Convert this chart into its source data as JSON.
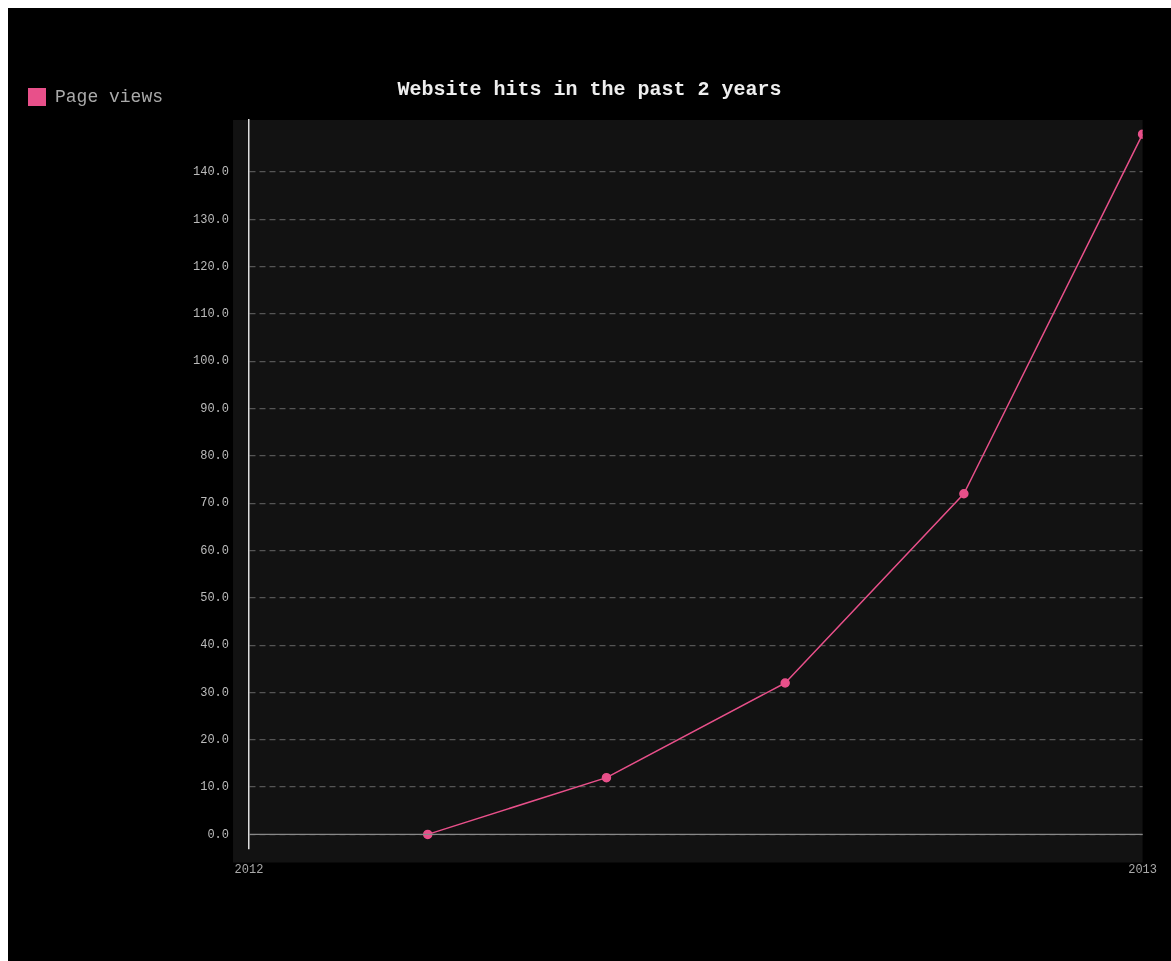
{
  "chart_data": {
    "type": "line",
    "title": "Website hits in the past 2 years",
    "x": [
      2012.2,
      2012.4,
      2012.6,
      2012.8,
      2013
    ],
    "series": [
      {
        "name": "Page views",
        "color": "#e8508a",
        "values": [
          0,
          12,
          32,
          72,
          148
        ]
      }
    ],
    "xlim": [
      2012,
      2013
    ],
    "xticks": [
      2012,
      2013
    ],
    "ylim": [
      -3,
      151
    ],
    "yticks": [
      {
        "value": 0,
        "label": "0.0"
      },
      {
        "value": 10,
        "label": "10.0"
      },
      {
        "value": 20,
        "label": "20.0"
      },
      {
        "value": 30,
        "label": "30.0"
      },
      {
        "value": 40,
        "label": "40.0"
      },
      {
        "value": 50,
        "label": "50.0"
      },
      {
        "value": 60,
        "label": "60.0"
      },
      {
        "value": 70,
        "label": "70.0"
      },
      {
        "value": 80,
        "label": "80.0"
      },
      {
        "value": 90,
        "label": "90.0"
      },
      {
        "value": 100,
        "label": "100.0"
      },
      {
        "value": 110,
        "label": "110.0"
      },
      {
        "value": 120,
        "label": "120.0"
      },
      {
        "value": 130,
        "label": "130.0"
      },
      {
        "value": 140,
        "label": "140.0"
      }
    ],
    "ref_lines": [
      {
        "axis": "y",
        "value": 0,
        "color": "#888888",
        "line_style": "solid"
      }
    ],
    "grid": "y",
    "legend": "top left",
    "marker": "circle",
    "line_style": "solid"
  }
}
